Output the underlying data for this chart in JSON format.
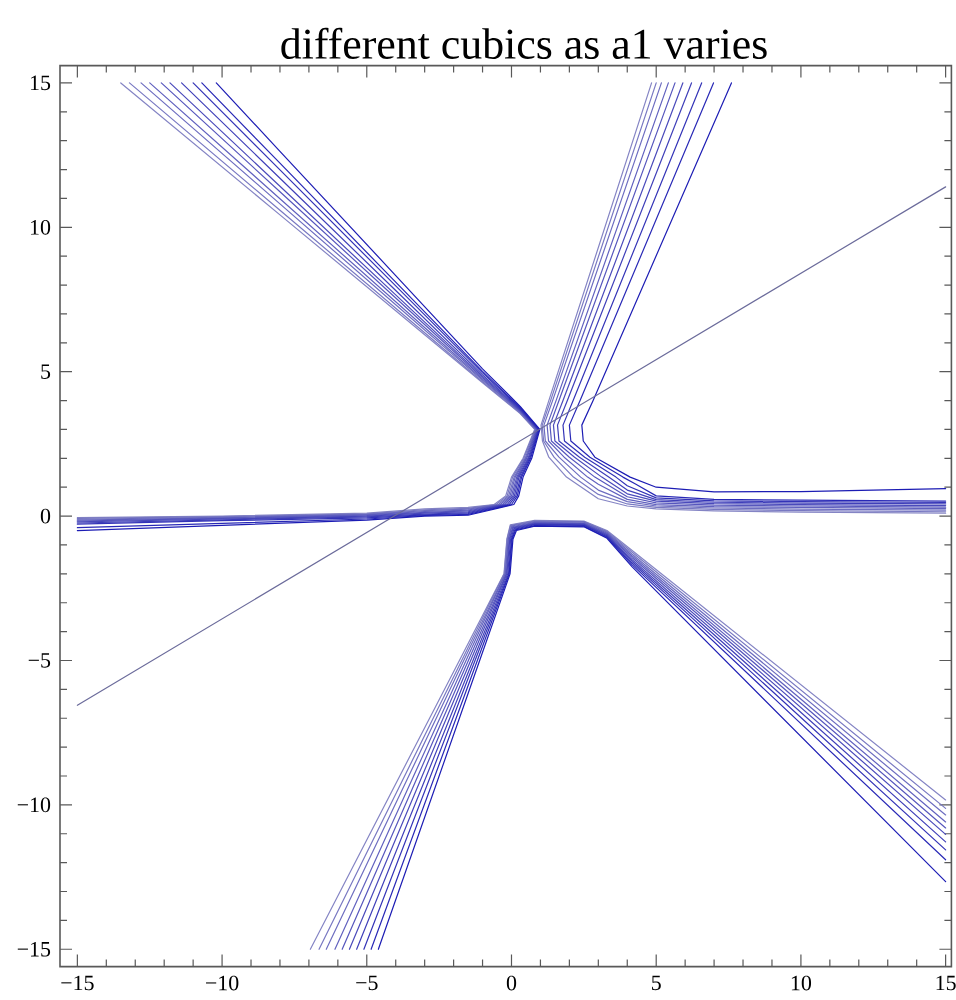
{
  "chart_data": {
    "type": "line",
    "title": "different cubics as a1 varies",
    "xlim": [
      -15.6,
      15.2
    ],
    "ylim": [
      -15.6,
      15.6
    ],
    "xticks": [
      {
        "value": -15,
        "label": "−15"
      },
      {
        "value": -14,
        "label": null
      },
      {
        "value": -13,
        "label": null
      },
      {
        "value": -12,
        "label": null
      },
      {
        "value": -11,
        "label": null
      },
      {
        "value": -10,
        "label": "−10"
      },
      {
        "value": -9,
        "label": null
      },
      {
        "value": -8,
        "label": null
      },
      {
        "value": -7,
        "label": null
      },
      {
        "value": -6,
        "label": null
      },
      {
        "value": -5,
        "label": "−5"
      },
      {
        "value": -4,
        "label": null
      },
      {
        "value": -3,
        "label": null
      },
      {
        "value": -2,
        "label": null
      },
      {
        "value": -1,
        "label": null
      },
      0,
      {
        "value": 1,
        "label": null
      },
      {
        "value": 2,
        "label": null
      },
      {
        "value": 3,
        "label": null
      },
      {
        "value": 4,
        "label": null
      },
      5,
      {
        "value": 6,
        "label": null
      },
      {
        "value": 7,
        "label": null
      },
      {
        "value": 8,
        "label": null
      },
      {
        "value": 9,
        "label": null
      },
      10,
      {
        "value": 11,
        "label": null
      },
      {
        "value": 12,
        "label": null
      },
      {
        "value": 13,
        "label": null
      },
      {
        "value": 14,
        "label": null
      },
      15
    ],
    "yticks": [
      {
        "value": -15,
        "label": "−15"
      },
      {
        "value": -14,
        "label": null
      },
      {
        "value": -13,
        "label": null
      },
      {
        "value": -12,
        "label": null
      },
      {
        "value": -11,
        "label": null
      },
      {
        "value": -10,
        "label": "−10"
      },
      {
        "value": -9,
        "label": null
      },
      {
        "value": -8,
        "label": null
      },
      {
        "value": -7,
        "label": null
      },
      {
        "value": -6,
        "label": null
      },
      {
        "value": -5,
        "label": "−5"
      },
      {
        "value": -4,
        "label": null
      },
      {
        "value": -3,
        "label": null
      },
      {
        "value": -2,
        "label": null
      },
      {
        "value": -1,
        "label": null
      },
      0,
      {
        "value": 1,
        "label": null
      },
      {
        "value": 2,
        "label": null
      },
      {
        "value": 3,
        "label": null
      },
      {
        "value": 4,
        "label": null
      },
      5,
      {
        "value": 6,
        "label": null
      },
      {
        "value": 7,
        "label": null
      },
      {
        "value": 8,
        "label": null
      },
      {
        "value": 9,
        "label": null
      },
      10,
      {
        "value": 11,
        "label": null
      },
      {
        "value": 12,
        "label": null
      },
      {
        "value": 13,
        "label": null
      },
      {
        "value": 14,
        "label": null
      },
      15
    ],
    "series": [
      {
        "color": "#8484c4",
        "x": [
          -13.5,
          -8,
          -4,
          -1,
          0.3,
          0.8,
          0.4,
          0.0,
          -0.2,
          -0.6,
          -1.5,
          -3,
          -5,
          -10,
          -15
        ],
        "values": [
          15,
          10.43,
          7.11,
          4.62,
          3.55,
          3.0,
          2.0,
          1.35,
          0.7,
          0.4,
          0.3,
          0.25,
          0.1,
          0.0,
          -0.05
        ]
      },
      {
        "color": "#8484c4",
        "x": [
          4.84,
          1.29,
          1.02,
          1.07,
          1.29,
          1.9,
          3,
          4,
          5,
          7,
          10,
          15
        ],
        "values": [
          15,
          4,
          3.15,
          2.6,
          2.04,
          1.35,
          0.6,
          0.35,
          0.25,
          0.18,
          0.14,
          0.1
        ]
      },
      {
        "color": "#8484c4",
        "x": [
          -6.95,
          -1.8,
          -0.26,
          -0.16,
          -0.04,
          0.8,
          2.5,
          3.3,
          4.17,
          15
        ],
        "values": [
          -15,
          -5,
          -2,
          -0.8,
          -0.3,
          -0.15,
          -0.17,
          -0.5,
          -1.19,
          -9.83
        ]
      },
      {
        "color": "#7878c2",
        "x": [
          -13.2,
          -8,
          -4,
          -1,
          0.3,
          0.82,
          0.43,
          0.04,
          -0.15,
          -0.53,
          -1.5,
          -3,
          -5,
          -10,
          -15
        ],
        "values": [
          15,
          10.59,
          7.2,
          4.65,
          3.57,
          3.0,
          2.0,
          1.35,
          0.7,
          0.4,
          0.27,
          0.22,
          0.08,
          -0.02,
          -0.08
        ]
      },
      {
        "color": "#7878c2",
        "x": [
          5.0,
          1.35,
          1.06,
          1.11,
          1.47,
          2.14,
          3,
          4,
          5,
          7,
          10,
          15
        ],
        "values": [
          15,
          4,
          3.15,
          2.6,
          2.04,
          1.35,
          0.75,
          0.42,
          0.3,
          0.23,
          0.19,
          0.15
        ]
      },
      {
        "color": "#7878c2",
        "x": [
          -6.65,
          -1.72,
          -0.25,
          -0.15,
          -0.03,
          0.8,
          2.5,
          3.3,
          4.17,
          15
        ],
        "values": [
          -15,
          -5,
          -2,
          -0.8,
          -0.32,
          -0.17,
          -0.19,
          -0.53,
          -1.25,
          -10.12
        ]
      },
      {
        "color": "#6d6dc0",
        "x": [
          -12.8,
          -8,
          -4,
          -1,
          0.3,
          0.84,
          0.47,
          0.09,
          -0.1,
          -0.45,
          -1.5,
          -3,
          -5,
          -10,
          -15
        ],
        "values": [
          15,
          10.81,
          7.32,
          4.7,
          3.6,
          3.0,
          2.0,
          1.35,
          0.7,
          0.4,
          0.24,
          0.19,
          0.06,
          -0.04,
          -0.11
        ]
      },
      {
        "color": "#6d6dc0",
        "x": [
          5.18,
          1.42,
          1.12,
          1.17,
          1.64,
          2.39,
          3,
          4,
          5,
          7,
          10,
          15
        ],
        "values": [
          15,
          4,
          3.15,
          2.6,
          2.04,
          1.35,
          0.9,
          0.5,
          0.35,
          0.28,
          0.24,
          0.21
        ]
      },
      {
        "color": "#6d6dc0",
        "x": [
          -6.4,
          -1.65,
          -0.22,
          -0.12,
          0.0,
          0.8,
          2.5,
          3.3,
          4.17,
          15
        ],
        "values": [
          -15,
          -5,
          -2,
          -0.8,
          -0.34,
          -0.19,
          -0.21,
          -0.56,
          -1.32,
          -10.35
        ]
      },
      {
        "color": "#6161bf",
        "x": [
          -12.5,
          -8,
          -4,
          -1,
          0.3,
          0.86,
          0.5,
          0.13,
          -0.05,
          -0.38,
          -1.5,
          -3,
          -5,
          -10,
          -15
        ],
        "values": [
          15,
          10.99,
          7.42,
          4.74,
          3.62,
          3.0,
          2.0,
          1.35,
          0.7,
          0.4,
          0.21,
          0.16,
          0.04,
          -0.06,
          -0.14
        ]
      },
      {
        "color": "#6161bf",
        "x": [
          5.42,
          1.54,
          1.23,
          1.28,
          1.82,
          2.63,
          3,
          4,
          5,
          7,
          10,
          15
        ],
        "values": [
          15,
          4,
          3.15,
          2.6,
          2.04,
          1.35,
          1.1,
          0.58,
          0.4,
          0.33,
          0.3,
          0.26
        ]
      },
      {
        "color": "#6161bf",
        "x": [
          -6.1,
          -1.57,
          -0.21,
          -0.11,
          0.01,
          0.8,
          2.5,
          3.3,
          4.17,
          15
        ],
        "values": [
          -15,
          -5,
          -2,
          -0.8,
          -0.37,
          -0.22,
          -0.24,
          -0.59,
          -1.38,
          -10.59
        ]
      },
      {
        "color": "#5656bd",
        "x": [
          -12.1,
          -8,
          -4,
          -1,
          0.3,
          0.88,
          0.53,
          0.18,
          0.0,
          -0.3,
          -1.5,
          -3,
          -5,
          -10,
          -15
        ],
        "values": [
          15,
          11.23,
          7.55,
          4.79,
          3.65,
          3.0,
          2.0,
          1.35,
          0.7,
          0.4,
          0.18,
          0.13,
          0.02,
          -0.08,
          -0.17
        ]
      },
      {
        "color": "#5656bd",
        "x": [
          5.65,
          1.64,
          1.33,
          1.38,
          2.0,
          2.88,
          4,
          5,
          7,
          10,
          15
        ],
        "values": [
          15,
          4,
          3.15,
          2.6,
          2.04,
          1.35,
          0.67,
          0.46,
          0.38,
          0.35,
          0.31
        ]
      },
      {
        "color": "#5656bd",
        "x": [
          -5.85,
          -1.49,
          -0.18,
          -0.08,
          0.04,
          0.8,
          2.5,
          3.3,
          4.17,
          15
        ],
        "values": [
          -15,
          -5,
          -2,
          -0.8,
          -0.39,
          -0.24,
          -0.26,
          -0.62,
          -1.44,
          -10.8
        ]
      },
      {
        "color": "#4a4abb",
        "x": [
          -11.8,
          -8,
          -4,
          -1,
          0.3,
          0.9,
          0.57,
          0.22,
          0.05,
          -0.23,
          -1.5,
          -3,
          -5,
          -10,
          -15
        ],
        "values": [
          15,
          11.42,
          7.66,
          4.84,
          3.67,
          3.0,
          2.0,
          1.35,
          0.7,
          0.4,
          0.15,
          0.1,
          0.0,
          -0.1,
          -0.2
        ]
      },
      {
        "color": "#4a4abb",
        "x": [
          5.92,
          1.78,
          1.45,
          1.5,
          2.18,
          3.12,
          4,
          5,
          7,
          10,
          15
        ],
        "values": [
          15,
          4,
          3.15,
          2.6,
          2.04,
          1.35,
          0.77,
          0.52,
          0.43,
          0.4,
          0.36
        ]
      },
      {
        "color": "#4a4abb",
        "x": [
          -5.6,
          -1.41,
          -0.16,
          -0.06,
          0.06,
          0.8,
          2.5,
          3.3,
          4.17,
          15
        ],
        "values": [
          -15,
          -5,
          -2,
          -0.8,
          -0.41,
          -0.26,
          -0.28,
          -0.65,
          -1.51,
          -11.02
        ]
      },
      {
        "color": "#3f3fb9",
        "x": [
          -11.4,
          -8,
          -4,
          -1,
          0.3,
          0.92,
          0.6,
          0.26,
          0.1,
          -0.15,
          -1.5,
          -3,
          -5,
          -10,
          -15
        ],
        "values": [
          15,
          11.7,
          7.81,
          4.89,
          3.7,
          3.0,
          2.0,
          1.35,
          0.7,
          0.4,
          0.12,
          0.07,
          -0.03,
          -0.13,
          -0.24
        ]
      },
      {
        "color": "#3f3fb9",
        "x": [
          6.22,
          1.93,
          1.59,
          1.64,
          2.35,
          3.36,
          4,
          5,
          7,
          10,
          15
        ],
        "values": [
          15,
          4,
          3.15,
          2.6,
          2.04,
          1.35,
          0.9,
          0.57,
          0.48,
          0.45,
          0.42
        ]
      },
      {
        "color": "#3f3fb9",
        "x": [
          -5.35,
          -1.33,
          -0.13,
          -0.03,
          0.09,
          0.8,
          2.5,
          3.3,
          4.17,
          15
        ],
        "values": [
          -15,
          -5,
          -2,
          -0.8,
          -0.43,
          -0.28,
          -0.3,
          -0.68,
          -1.57,
          -11.28
        ]
      },
      {
        "color": "#3333b7",
        "x": [
          -11.0,
          -8,
          -4,
          -1,
          0.3,
          0.94,
          0.63,
          0.31,
          0.15,
          -0.08,
          -1.5,
          -3,
          -5,
          -10,
          -15
        ],
        "values": [
          15,
          11.99,
          7.97,
          4.96,
          3.73,
          3.0,
          2.0,
          1.35,
          0.7,
          0.4,
          0.09,
          0.04,
          -0.06,
          -0.16,
          -0.28
        ]
      },
      {
        "color": "#3333b7",
        "x": [
          6.57,
          2.13,
          1.78,
          1.83,
          2.53,
          3.61,
          4,
          5,
          7,
          10,
          15
        ],
        "values": [
          15,
          4,
          3.15,
          2.6,
          2.04,
          1.35,
          1.05,
          0.63,
          0.53,
          0.5,
          0.47
        ]
      },
      {
        "color": "#3333b7",
        "x": [
          -5.1,
          -1.26,
          -0.1,
          0.0,
          0.12,
          0.8,
          2.5,
          3.3,
          4.17,
          15
        ],
        "values": [
          -15,
          -5,
          -2,
          -0.8,
          -0.45,
          -0.3,
          -0.32,
          -0.71,
          -1.63,
          -11.56
        ]
      },
      {
        "color": "#2828b6",
        "x": [
          -10.7,
          -8,
          -4,
          -1,
          0.3,
          0.96,
          0.66,
          0.35,
          0.2,
          0.0,
          -1.5,
          -3,
          -5,
          -10,
          -15
        ],
        "values": [
          15,
          12.22,
          8.1,
          5.01,
          3.76,
          3.0,
          2.0,
          1.35,
          0.7,
          0.4,
          0.06,
          0.02,
          -0.1,
          -0.25,
          -0.4
        ]
      },
      {
        "color": "#2828b6",
        "x": [
          6.98,
          2.37,
          2.0,
          2.05,
          2.71,
          3.85,
          4.3,
          5,
          7,
          10,
          15
        ],
        "values": [
          15,
          4,
          3.15,
          2.6,
          2.04,
          1.35,
          1.1,
          0.7,
          0.58,
          0.55,
          0.52
        ]
      },
      {
        "color": "#2828b6",
        "x": [
          -4.85,
          -1.18,
          -0.08,
          0.02,
          0.14,
          0.8,
          2.5,
          3.3,
          4.17,
          15
        ],
        "values": [
          -15,
          -5,
          -2,
          -0.8,
          -0.48,
          -0.33,
          -0.35,
          -0.74,
          -1.69,
          -11.9
        ]
      },
      {
        "color": "#1c1cb4",
        "x": [
          -10.2,
          -8,
          -4,
          -1,
          0.3,
          0.98,
          0.7,
          0.4,
          0.25,
          0.08,
          -1.5,
          -3,
          -5,
          -10,
          -15
        ],
        "values": [
          15,
          12.63,
          8.33,
          5.1,
          3.8,
          3.0,
          2.0,
          1.35,
          0.7,
          0.4,
          0.03,
          0.0,
          -0.14,
          -0.32,
          -0.5
        ]
      },
      {
        "color": "#1c1cb4",
        "x": [
          7.6,
          2.82,
          2.43,
          2.48,
          2.88,
          4.1,
          5,
          7,
          10,
          15
        ],
        "values": [
          15,
          4,
          3.15,
          2.6,
          2.04,
          1.35,
          1.0,
          0.84,
          0.85,
          0.95
        ]
      },
      {
        "color": "#1c1cb4",
        "x": [
          -4.6,
          -1.1,
          -0.05,
          0.05,
          0.17,
          0.8,
          2.5,
          3.3,
          4.17,
          15
        ],
        "values": [
          -15,
          -5,
          -2,
          -0.8,
          -0.5,
          -0.35,
          -0.37,
          -0.77,
          -1.76,
          -12.66
        ]
      },
      {
        "color": "#6b6b9b",
        "x": [
          -15,
          15
        ],
        "values": [
          -6.55,
          11.4
        ]
      }
    ]
  }
}
